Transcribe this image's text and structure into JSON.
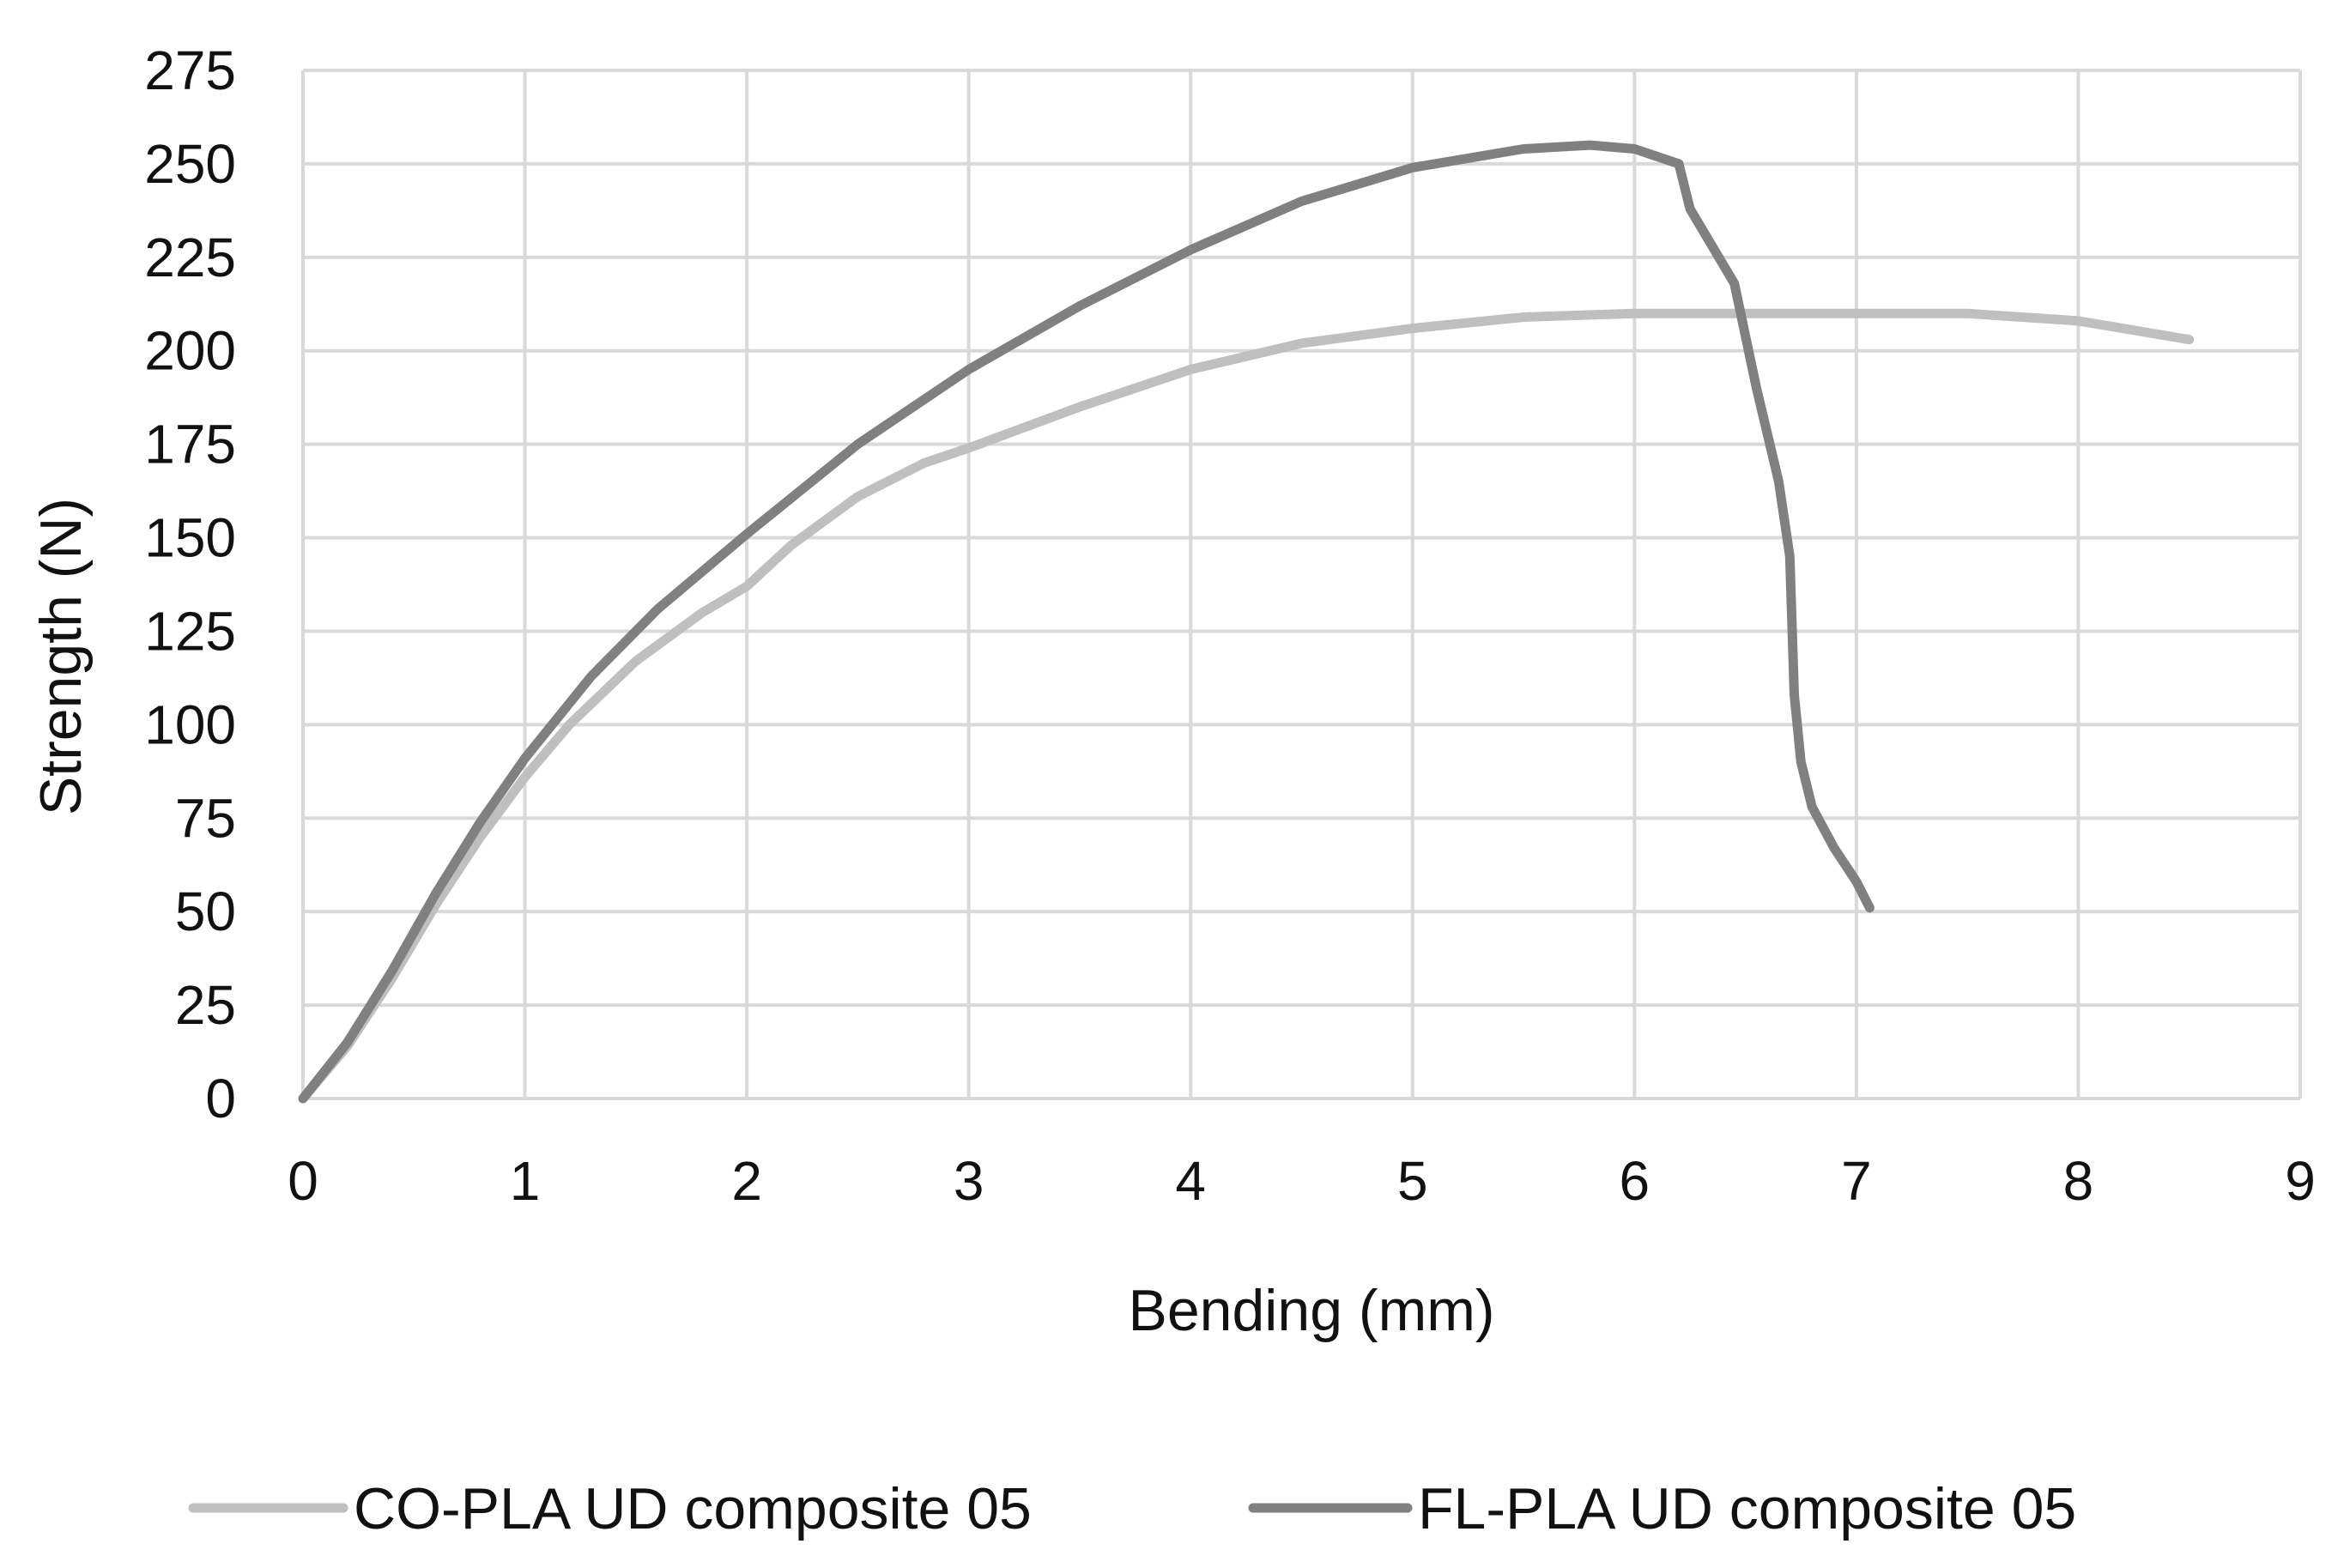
{
  "chart_data": {
    "type": "line",
    "title": "",
    "xlabel": "Bending (mm)",
    "ylabel": "Strength (N)",
    "xlim": [
      0,
      9
    ],
    "ylim": [
      0,
      275
    ],
    "xticks": [
      0,
      1,
      2,
      3,
      4,
      5,
      6,
      7,
      8,
      9
    ],
    "yticks": [
      0,
      25,
      50,
      75,
      100,
      125,
      150,
      175,
      200,
      225,
      250,
      275
    ],
    "grid": true,
    "legend_position": "bottom",
    "series": [
      {
        "name": "CO-PLA UD composite 05",
        "color": "#bfbfbf",
        "x": [
          0,
          0.2,
          0.4,
          0.6,
          0.8,
          1.0,
          1.2,
          1.5,
          1.8,
          2.0,
          2.2,
          2.5,
          2.8,
          3.0,
          3.5,
          4.0,
          4.5,
          5.0,
          5.5,
          6.0,
          6.5,
          7.0,
          7.5,
          8.0,
          8.2,
          8.5
        ],
        "y": [
          0,
          14,
          32,
          52,
          70,
          86,
          100,
          117,
          130,
          137,
          148,
          161,
          170,
          174,
          185,
          195,
          202,
          206,
          209,
          210,
          210,
          210,
          210,
          208,
          206,
          203
        ]
      },
      {
        "name": "FL-PLA UD composite 05",
        "color": "#808080",
        "x": [
          0,
          0.2,
          0.4,
          0.6,
          0.8,
          1.0,
          1.3,
          1.6,
          2.0,
          2.5,
          3.0,
          3.5,
          4.0,
          4.5,
          5.0,
          5.5,
          5.8,
          6.0,
          6.2,
          6.25,
          6.35,
          6.45,
          6.55,
          6.65,
          6.7,
          6.72,
          6.75,
          6.8,
          6.9,
          7.0,
          7.06
        ],
        "y": [
          0,
          15,
          34,
          55,
          74,
          91,
          113,
          131,
          151,
          175,
          195,
          212,
          227,
          240,
          249,
          254,
          255,
          254,
          250,
          238,
          228,
          218,
          190,
          165,
          145,
          108,
          90,
          78,
          67,
          58,
          51
        ]
      }
    ]
  }
}
